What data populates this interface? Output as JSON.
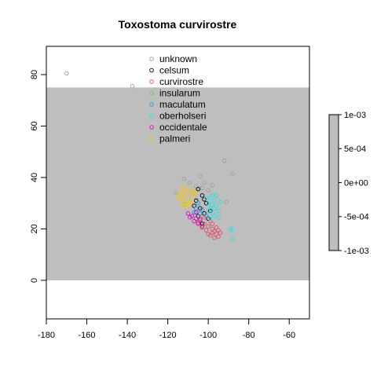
{
  "chart_data": {
    "type": "scatter",
    "title": "Toxostoma curvirostre",
    "xlabel": "",
    "ylabel": "",
    "xlim": [
      -180,
      -50
    ],
    "ylim": [
      -15,
      91
    ],
    "x_ticks": [
      -180,
      -160,
      -140,
      -120,
      -100,
      -80,
      -60
    ],
    "y_ticks": [
      0,
      20,
      40,
      60,
      80
    ],
    "grid": false,
    "background_band": {
      "x": [
        -180,
        -50
      ],
      "y": [
        0,
        75
      ],
      "color": "#bebebe"
    },
    "legend": {
      "placement": "top-center"
    },
    "series": [
      {
        "name": "unknown",
        "color": "#9e9e9e",
        "points": [
          [
            -170,
            80.5
          ],
          [
            -137.5,
            75.5
          ],
          [
            -92,
            46.5
          ],
          [
            -88,
            41.5
          ],
          [
            -104,
            40.5
          ],
          [
            -112,
            39.5
          ],
          [
            -116,
            34
          ],
          [
            -91,
            30.5
          ],
          [
            -102,
            38
          ],
          [
            -98,
            37
          ],
          [
            -106,
            36.5
          ],
          [
            -100,
            35
          ],
          [
            -109,
            38
          ],
          [
            -103,
            36
          ],
          [
            -96,
            33
          ],
          [
            -108,
            35
          ]
        ]
      },
      {
        "name": "celsum",
        "color": "#000000",
        "points": [
          [
            -105,
            35.5
          ],
          [
            -103,
            33
          ],
          [
            -106,
            31
          ],
          [
            -101,
            30
          ],
          [
            -104,
            28
          ],
          [
            -102,
            26
          ],
          [
            -100,
            24
          ],
          [
            -103,
            22
          ],
          [
            -99,
            27
          ],
          [
            -107,
            29
          ],
          [
            -105,
            25
          ],
          [
            -102,
            31.5
          ]
        ]
      },
      {
        "name": "curvirostre",
        "color": "#df536b",
        "points": [
          [
            -104,
            24
          ],
          [
            -102,
            22
          ],
          [
            -100,
            21
          ],
          [
            -98,
            20
          ],
          [
            -97,
            19
          ],
          [
            -96,
            18
          ],
          [
            -95,
            17
          ],
          [
            -99,
            23
          ],
          [
            -101,
            19.5
          ],
          [
            -103,
            20.5
          ],
          [
            -98,
            22
          ],
          [
            -96,
            20.5
          ],
          [
            -94,
            18.5
          ],
          [
            -97,
            16.5
          ],
          [
            -100,
            18
          ],
          [
            -105,
            22.5
          ],
          [
            -99,
            17.5
          ],
          [
            -95,
            19.5
          ],
          [
            -102,
            24.5
          ],
          [
            -98,
            18.5
          ]
        ]
      },
      {
        "name": "insularum",
        "color": "#61d04f",
        "points": [
          [
            -111.5,
            29.5
          ]
        ]
      },
      {
        "name": "maculatum",
        "color": "#2297e6",
        "points": [
          [
            -106,
            28
          ],
          [
            -104,
            26
          ],
          [
            -105,
            30
          ],
          [
            -103,
            27.5
          ],
          [
            -101,
            25
          ],
          [
            -107,
            26.5
          ]
        ]
      },
      {
        "name": "oberholseri",
        "color": "#28e2e5",
        "points": [
          [
            -100,
            30
          ],
          [
            -99,
            28
          ],
          [
            -98,
            26
          ],
          [
            -97,
            31
          ],
          [
            -96,
            29
          ],
          [
            -98,
            33
          ],
          [
            -95,
            27
          ],
          [
            -99,
            32
          ],
          [
            -97,
            25
          ],
          [
            -96,
            33
          ],
          [
            -100,
            27
          ],
          [
            -94,
            30.5
          ],
          [
            -98,
            29.5
          ],
          [
            -101,
            32
          ],
          [
            -95,
            24.5
          ],
          [
            -89,
            20
          ],
          [
            -88,
            19.5
          ],
          [
            -88,
            16
          ],
          [
            -97,
            28
          ],
          [
            -99,
            24
          ]
        ]
      },
      {
        "name": "occidentale",
        "color": "#cd0bbc",
        "points": [
          [
            -110,
            26
          ],
          [
            -108,
            25
          ],
          [
            -106,
            24
          ],
          [
            -105,
            22
          ],
          [
            -107,
            23
          ],
          [
            -103,
            21
          ],
          [
            -109,
            24.5
          ],
          [
            -104,
            23.5
          ],
          [
            -106,
            26.5
          ]
        ]
      },
      {
        "name": "palmeri",
        "color": "#f5c710",
        "points": [
          [
            -114,
            34
          ],
          [
            -113,
            33
          ],
          [
            -112,
            32
          ],
          [
            -111,
            31
          ],
          [
            -110,
            30
          ],
          [
            -112,
            35
          ],
          [
            -114,
            31.5
          ],
          [
            -113,
            29
          ],
          [
            -111,
            28.5
          ],
          [
            -109,
            33
          ],
          [
            -110,
            35.5
          ],
          [
            -112,
            30
          ],
          [
            -108,
            31
          ],
          [
            -107,
            33.5
          ],
          [
            -115,
            32.5
          ],
          [
            -113,
            36
          ],
          [
            -111,
            34
          ],
          [
            -109,
            29.5
          ],
          [
            -108,
            35
          ],
          [
            -106,
            34
          ]
        ]
      }
    ],
    "colorbar": {
      "ticks": [
        "1e-03",
        "5e-04",
        "0e+00",
        "-5e-04",
        "-1e-03"
      ],
      "tick_values": [
        0.001,
        0.0005,
        0,
        -0.0005,
        -0.001
      ],
      "color": "#bebebe"
    }
  }
}
